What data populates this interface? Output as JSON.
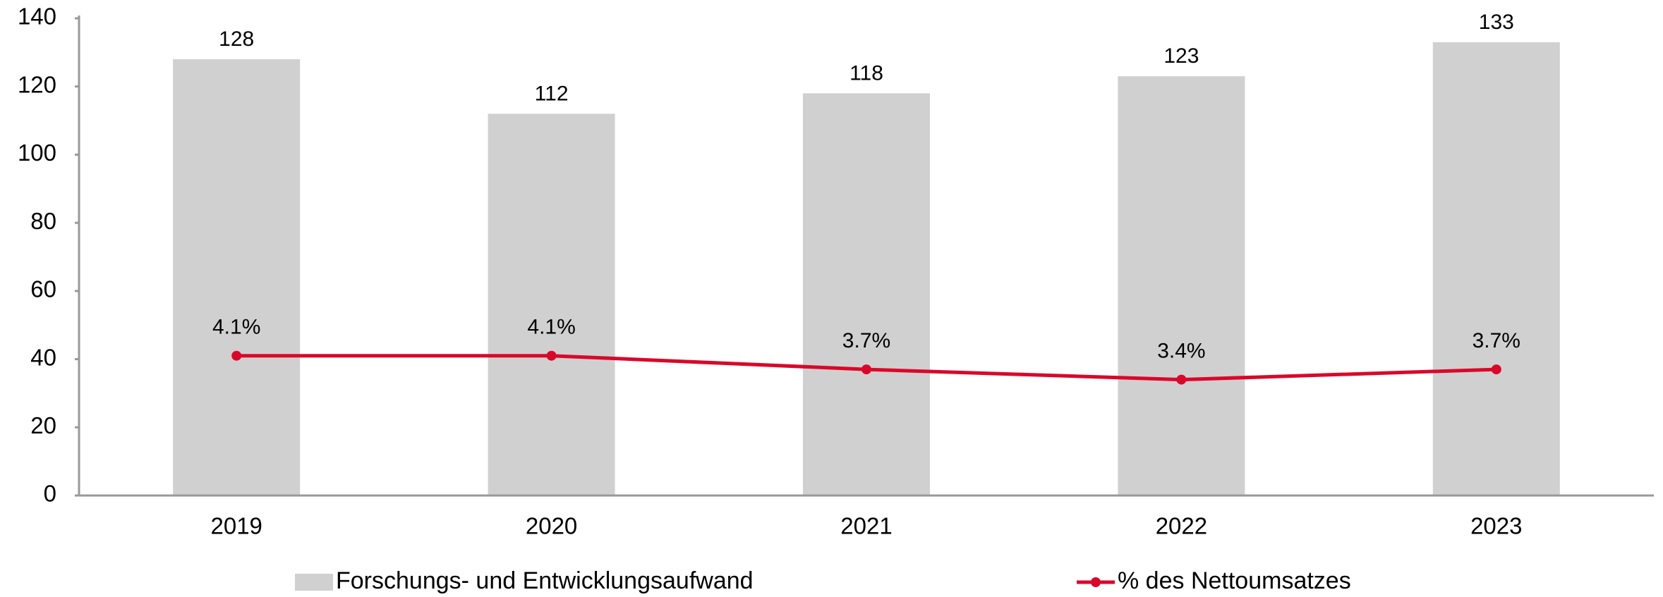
{
  "chart_data": {
    "type": "bar_line",
    "categories": [
      "2019",
      "2020",
      "2021",
      "2022",
      "2023"
    ],
    "series": [
      {
        "name": "Forschungs- und Entwicklungsaufwand",
        "type": "bar",
        "color": "#d0d0d0",
        "values": [
          128,
          112,
          118,
          123,
          133
        ]
      },
      {
        "name": "% des Nettoumsatzes",
        "type": "line",
        "color": "#d9082a",
        "axis": "y2",
        "values": [
          4.1,
          4.1,
          3.7,
          3.4,
          3.7
        ],
        "value_labels": [
          "4.1%",
          "4.1%",
          "3.7%",
          "3.4%",
          "3.7%"
        ]
      }
    ],
    "ylim": [
      0,
      140
    ],
    "yticks": [
      0,
      20,
      40,
      60,
      80,
      100,
      120,
      140
    ],
    "y2lim": [
      0,
      14
    ],
    "grid": false,
    "legend": "bottom"
  }
}
